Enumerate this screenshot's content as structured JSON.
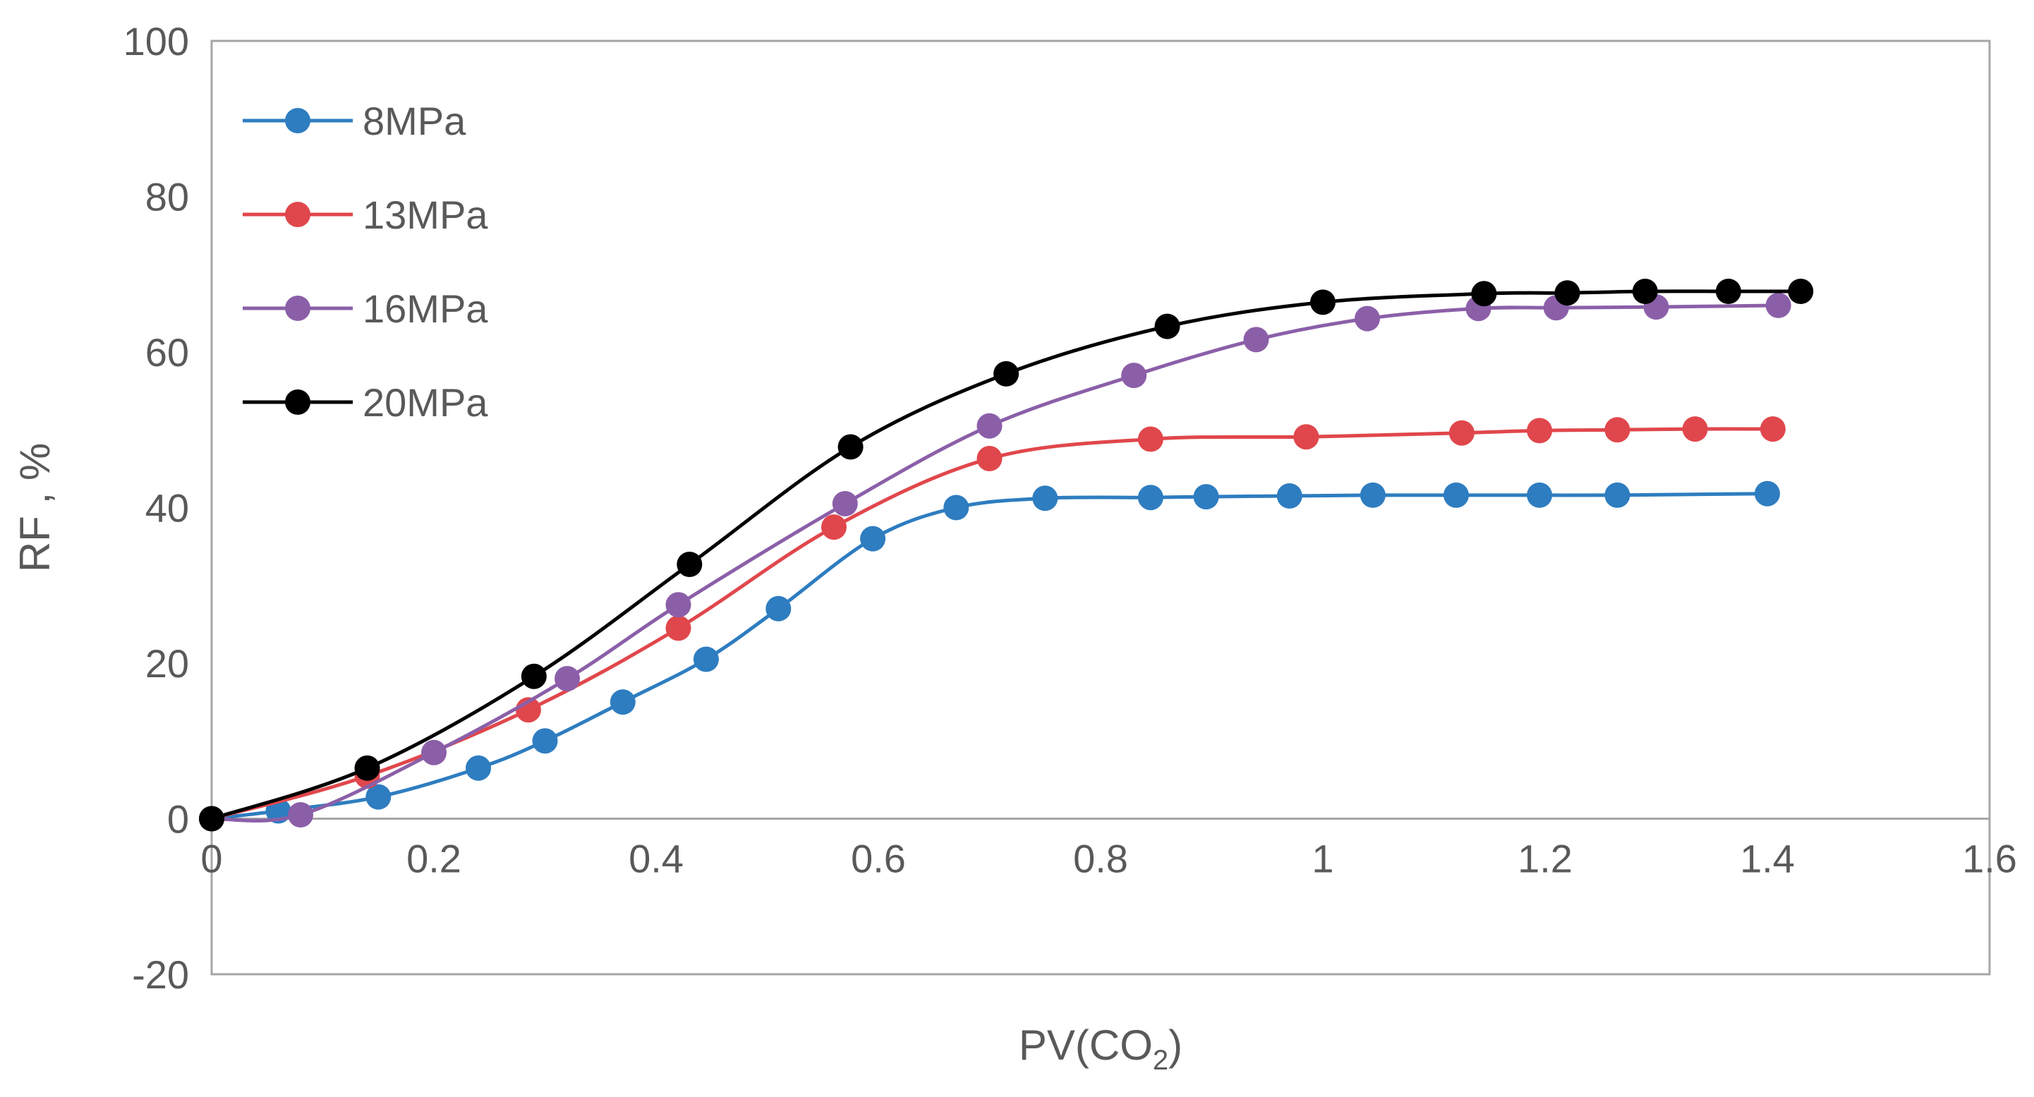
{
  "chart_data": {
    "type": "line",
    "xlabel": "PV(CO",
    "xlabel_sub": "2",
    "xlabel_close": ")",
    "ylabel": "RF , %",
    "xlim": [
      0,
      1.6
    ],
    "ylim": [
      -20,
      100
    ],
    "xticks": [
      "0",
      "0.2",
      "0.4",
      "0.6",
      "0.8",
      "1",
      "1.2",
      "1.4",
      "1.6"
    ],
    "yticks": [
      "-20",
      "0",
      "20",
      "40",
      "60",
      "80",
      "100"
    ],
    "grid": false,
    "legend_position": "top-left",
    "series": [
      {
        "name": "8MPa",
        "color": "#2E7DC0",
        "x": [
          0,
          0.06,
          0.15,
          0.24,
          0.3,
          0.37,
          0.445,
          0.51,
          0.595,
          0.67,
          0.75,
          0.845,
          0.895,
          0.97,
          1.045,
          1.12,
          1.195,
          1.265,
          1.4
        ],
        "y": [
          0,
          1,
          2.8,
          6.5,
          10,
          15,
          20.5,
          27,
          36,
          40,
          41.2,
          41.3,
          41.4,
          41.5,
          41.6,
          41.6,
          41.6,
          41.6,
          41.8
        ]
      },
      {
        "name": "13MPa",
        "color": "#E0474C",
        "x": [
          0,
          0.14,
          0.285,
          0.42,
          0.56,
          0.7,
          0.845,
          0.985,
          1.125,
          1.195,
          1.265,
          1.335,
          1.405
        ],
        "y": [
          0,
          5.5,
          14,
          24.5,
          37.5,
          46.3,
          48.8,
          49.1,
          49.6,
          49.9,
          50,
          50.1,
          50.1
        ]
      },
      {
        "name": "16MPa",
        "color": "#8B5FA8",
        "x": [
          0,
          0.08,
          0.2,
          0.32,
          0.42,
          0.57,
          0.7,
          0.83,
          0.94,
          1.04,
          1.14,
          1.21,
          1.3,
          1.41
        ],
        "y": [
          0,
          0.5,
          8.5,
          18,
          27.5,
          40.5,
          50.5,
          57,
          61.6,
          64.3,
          65.6,
          65.7,
          65.8,
          66
        ]
      },
      {
        "name": "20MPa",
        "color": "#000000",
        "x": [
          0,
          0.14,
          0.29,
          0.43,
          0.575,
          0.715,
          0.86,
          1.0,
          1.145,
          1.22,
          1.29,
          1.365,
          1.43
        ],
        "y": [
          0,
          6.5,
          18.3,
          32.7,
          47.8,
          57.2,
          63.3,
          66.4,
          67.5,
          67.6,
          67.8,
          67.8,
          67.8
        ]
      }
    ]
  }
}
